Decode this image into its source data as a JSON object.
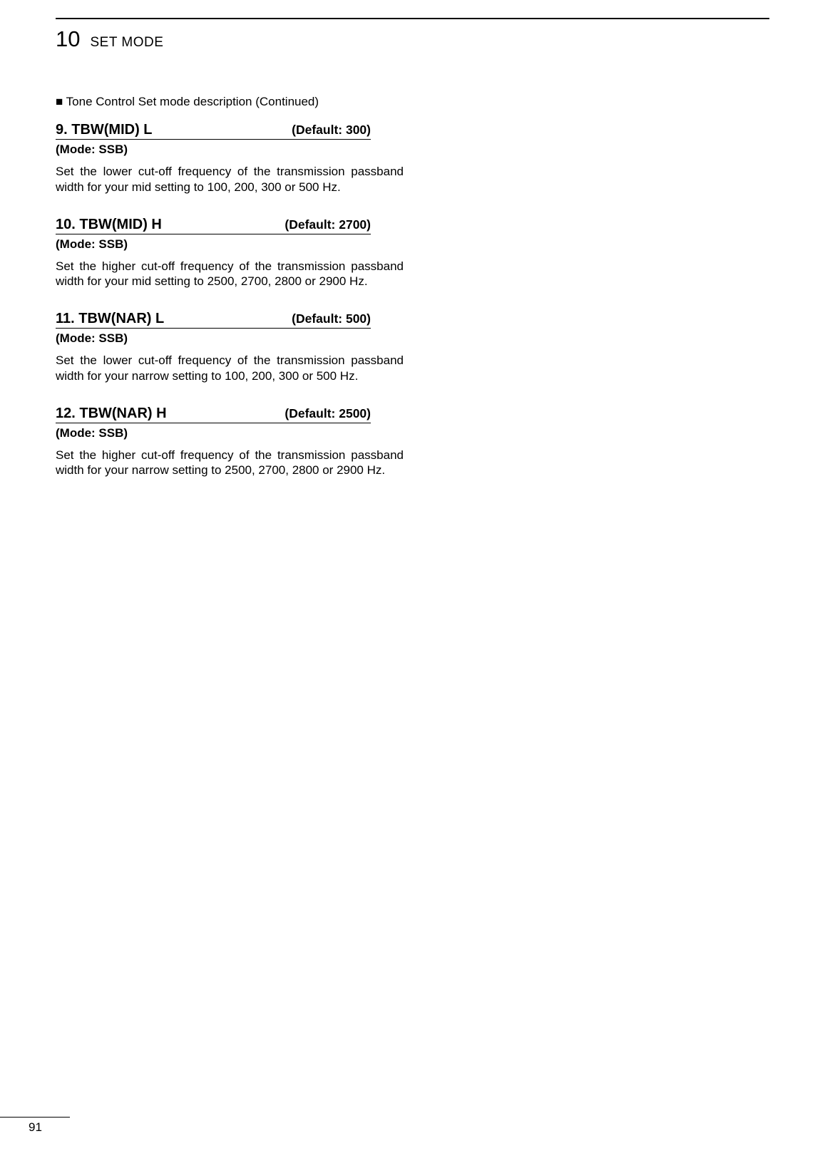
{
  "header": {
    "chapter_number": "10",
    "chapter_title": "SET MODE"
  },
  "continued_line": "■ Tone Control Set mode description (Continued)",
  "settings": [
    {
      "title": "9.   TBW(MID) L",
      "default": "(Default: 300)",
      "mode": "(Mode: SSB)",
      "body": "Set the lower cut-off frequency of the transmission passband width for your mid setting to 100, 200, 300 or 500 Hz."
    },
    {
      "title": "10. TBW(MID) H",
      "default": "(Default: 2700)",
      "mode": "(Mode: SSB)",
      "body": "Set the higher cut-off frequency of the transmission passband width for your mid setting to 2500, 2700, 2800 or 2900 Hz."
    },
    {
      "title": "11. TBW(NAR) L",
      "default": "(Default: 500)",
      "mode": "(Mode: SSB)",
      "body": "Set the lower cut-off frequency of the transmission passband width for your narrow setting to 100, 200, 300 or 500 Hz."
    },
    {
      "title": "12. TBW(NAR) H",
      "default": "(Default: 2500)",
      "mode": "(Mode: SSB)",
      "body": "Set the higher cut-off frequency of the transmission passband width for your narrow setting to 2500, 2700, 2800 or 2900 Hz."
    }
  ],
  "page_number": "91"
}
